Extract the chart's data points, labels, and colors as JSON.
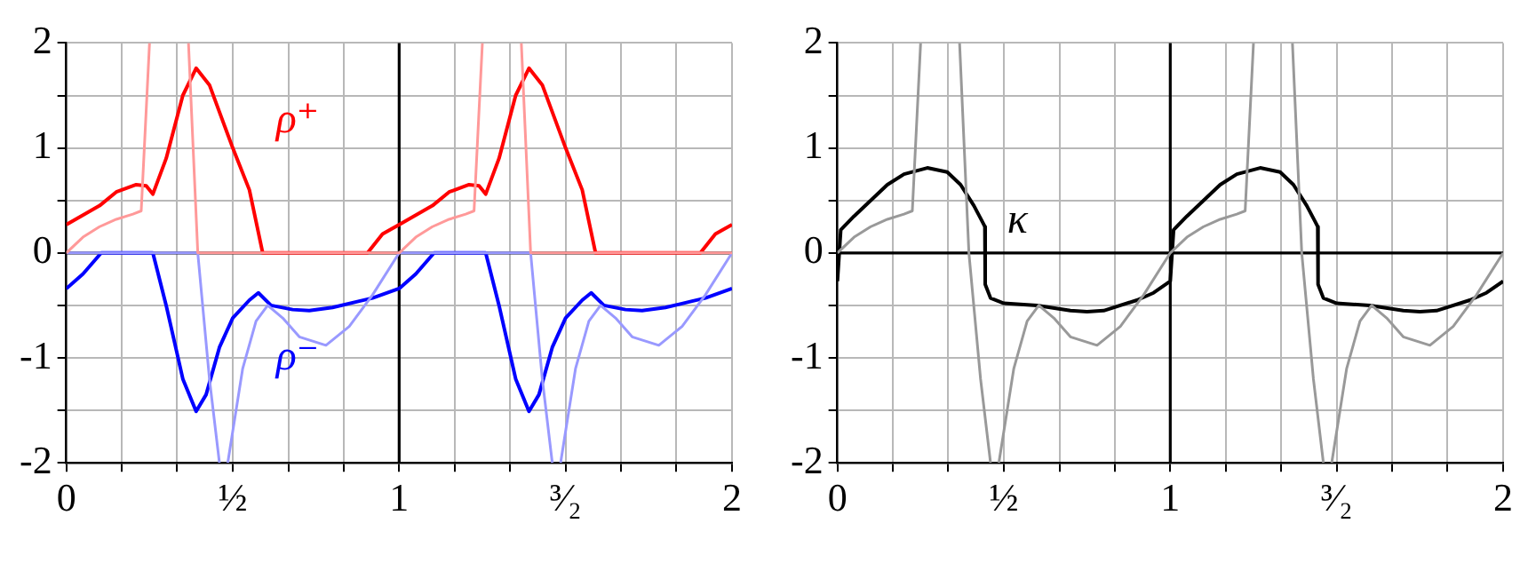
{
  "chart_data": [
    {
      "type": "line",
      "xlim": [
        0,
        2
      ],
      "ylim": [
        -2,
        2
      ],
      "xticks": [
        0,
        {
          "value": 0.167,
          "label": null
        },
        {
          "value": 0.333,
          "label": null
        },
        {
          "value": 0.5,
          "label": "½"
        },
        {
          "value": 0.667,
          "label": null
        },
        {
          "value": 0.833,
          "label": null
        },
        1,
        {
          "value": 1.167,
          "label": null
        },
        {
          "value": 1.333,
          "label": null
        },
        {
          "value": 1.5,
          "label": "³⁄₂"
        },
        {
          "value": 1.667,
          "label": null
        },
        {
          "value": 1.833,
          "label": null
        },
        2
      ],
      "yticks": [
        -2,
        {
          "value": -1.5,
          "label": null
        },
        -1,
        {
          "value": -0.5,
          "label": null
        },
        0,
        {
          "value": 0.5,
          "label": null
        },
        1,
        {
          "value": 1.5,
          "label": null
        },
        2
      ],
      "grid": true,
      "legend": false,
      "ref_lines": [
        {
          "axis": "x",
          "value": 1,
          "color": "#000000"
        },
        {
          "axis": "y",
          "value": 0,
          "color": "#000000"
        }
      ],
      "series": [
        {
          "color": "#ff9999",
          "x": [
            0,
            0.05,
            0.1,
            0.15,
            0.2,
            0.225,
            0.25,
            0.3,
            0.367,
            0.395,
            1.0,
            1.05,
            1.1,
            1.15,
            1.2,
            1.225,
            1.25,
            1.3,
            1.367,
            1.395,
            2.0
          ],
          "values": [
            0,
            0.15,
            0.25,
            0.32,
            0.37,
            0.4,
            2,
            null,
            2,
            0,
            0,
            0.15,
            0.25,
            0.32,
            0.37,
            0.4,
            2,
            null,
            2,
            0,
            0
          ]
        },
        {
          "color": "#9999ff",
          "x": [
            0,
            0.395,
            0.43,
            0.46,
            0.47,
            0.485,
            0.53,
            0.57,
            0.605,
            0.65,
            0.7,
            0.78,
            0.85,
            0.92,
            1.0,
            1.395,
            1.43,
            1.46,
            1.47,
            1.485,
            1.53,
            1.57,
            1.605,
            1.65,
            1.7,
            1.78,
            1.85,
            1.92,
            2.0
          ],
          "values": [
            0,
            0,
            -1.2,
            -2,
            null,
            -2,
            -1.1,
            -0.65,
            -0.5,
            -0.62,
            -0.8,
            -0.88,
            -0.7,
            -0.4,
            0,
            0,
            -1.2,
            -2,
            null,
            -2,
            -1.1,
            -0.65,
            -0.5,
            -0.62,
            -0.8,
            -0.88,
            -0.7,
            -0.4,
            0
          ]
        },
        {
          "name": "ρ⁺",
          "color": "#ff0000",
          "x": [
            0,
            0.05,
            0.1,
            0.15,
            0.21,
            0.24,
            0.26,
            0.3,
            0.35,
            0.39,
            0.43,
            0.5,
            0.55,
            0.59,
            0.905,
            0.95,
            1.0,
            1.05,
            1.1,
            1.15,
            1.21,
            1.24,
            1.26,
            1.3,
            1.35,
            1.39,
            1.43,
            1.5,
            1.55,
            1.59,
            1.905,
            1.95,
            2.0
          ],
          "values": [
            0.27,
            0.36,
            0.45,
            0.58,
            0.65,
            0.64,
            0.56,
            0.9,
            1.5,
            1.76,
            1.6,
            1.0,
            0.6,
            0,
            0,
            0.18,
            0.27,
            0.36,
            0.45,
            0.58,
            0.65,
            0.64,
            0.56,
            0.9,
            1.5,
            1.76,
            1.6,
            1.0,
            0.6,
            0,
            0,
            0.18,
            0.27
          ]
        },
        {
          "name": "ρ⁻",
          "color": "#0000ff",
          "x": [
            0,
            0.05,
            0.105,
            0.26,
            0.3,
            0.35,
            0.39,
            0.42,
            0.46,
            0.5,
            0.55,
            0.577,
            0.615,
            0.68,
            0.73,
            0.8,
            0.88,
            0.92,
            1.0,
            1.05,
            1.105,
            1.26,
            1.3,
            1.35,
            1.39,
            1.42,
            1.46,
            1.5,
            1.55,
            1.577,
            1.615,
            1.68,
            1.73,
            1.8,
            1.88,
            1.92,
            2.0
          ],
          "values": [
            -0.34,
            -0.2,
            0,
            0,
            -0.5,
            -1.2,
            -1.51,
            -1.35,
            -0.9,
            -0.62,
            -0.45,
            -0.38,
            -0.5,
            -0.54,
            -0.55,
            -0.52,
            -0.46,
            -0.43,
            -0.34,
            -0.2,
            0,
            0,
            -0.5,
            -1.2,
            -1.51,
            -1.35,
            -0.9,
            -0.62,
            -0.45,
            -0.38,
            -0.5,
            -0.54,
            -0.55,
            -0.52,
            -0.46,
            -0.43,
            -0.34
          ]
        }
      ]
    },
    {
      "type": "line",
      "xlim": [
        0,
        2
      ],
      "ylim": [
        -2,
        2
      ],
      "xticks": [
        0,
        {
          "value": 0.167,
          "label": null
        },
        {
          "value": 0.333,
          "label": null
        },
        {
          "value": 0.5,
          "label": "½"
        },
        {
          "value": 0.667,
          "label": null
        },
        {
          "value": 0.833,
          "label": null
        },
        1,
        {
          "value": 1.167,
          "label": null
        },
        {
          "value": 1.333,
          "label": null
        },
        {
          "value": 1.5,
          "label": "³⁄₂"
        },
        {
          "value": 1.667,
          "label": null
        },
        {
          "value": 1.833,
          "label": null
        },
        2
      ],
      "yticks": [
        -2,
        {
          "value": -1.5,
          "label": null
        },
        -1,
        {
          "value": -0.5,
          "label": null
        },
        0,
        {
          "value": 0.5,
          "label": null
        },
        1,
        {
          "value": 1.5,
          "label": null
        },
        2
      ],
      "grid": true,
      "legend": false,
      "ref_lines": [
        {
          "axis": "x",
          "value": 1,
          "color": "#000000"
        },
        {
          "axis": "y",
          "value": 0,
          "color": "#000000"
        }
      ],
      "series": [
        {
          "color": "#999999",
          "x": [
            0,
            0.05,
            0.1,
            0.15,
            0.2,
            0.225,
            0.25,
            0.3,
            0.367,
            0.395,
            0.43,
            0.46,
            0.47,
            0.485,
            0.53,
            0.57,
            0.605,
            0.65,
            0.7,
            0.78,
            0.85,
            0.92,
            1.0,
            1.05,
            1.1,
            1.15,
            1.2,
            1.225,
            1.25,
            1.3,
            1.367,
            1.395,
            1.43,
            1.46,
            1.47,
            1.485,
            1.53,
            1.57,
            1.605,
            1.65,
            1.7,
            1.78,
            1.85,
            1.92,
            2.0
          ],
          "values": [
            0,
            0.15,
            0.25,
            0.32,
            0.37,
            0.4,
            2,
            null,
            2,
            0,
            -1.2,
            -2,
            null,
            -2,
            -1.1,
            -0.65,
            -0.5,
            -0.62,
            -0.8,
            -0.88,
            -0.7,
            -0.4,
            0,
            0.15,
            0.25,
            0.32,
            0.37,
            0.4,
            2,
            null,
            2,
            0,
            -1.2,
            -2,
            null,
            -2,
            -1.1,
            -0.65,
            -0.5,
            -0.62,
            -0.8,
            -0.88,
            -0.7,
            -0.4,
            0
          ]
        },
        {
          "name": "κ",
          "color": "#000000",
          "x": [
            0,
            0.01,
            0.05,
            0.1,
            0.15,
            0.2,
            0.27,
            0.33,
            0.37,
            0.41,
            0.435,
            0.443,
            0.444,
            0.46,
            0.5,
            0.6,
            0.7,
            0.75,
            0.8,
            0.9,
            0.95,
            1.0,
            1.01,
            1.05,
            1.1,
            1.15,
            1.2,
            1.27,
            1.33,
            1.37,
            1.41,
            1.435,
            1.443,
            1.444,
            1.46,
            1.5,
            1.6,
            1.7,
            1.75,
            1.8,
            1.9,
            1.95,
            2.0
          ],
          "values": [
            -0.27,
            0.22,
            0.35,
            0.5,
            0.65,
            0.75,
            0.81,
            0.77,
            0.65,
            0.45,
            0.3,
            0.25,
            -0.3,
            -0.43,
            -0.48,
            -0.5,
            -0.55,
            -0.56,
            -0.55,
            -0.45,
            -0.38,
            -0.27,
            0.22,
            0.35,
            0.5,
            0.65,
            0.75,
            0.81,
            0.77,
            0.65,
            0.45,
            0.3,
            0.25,
            -0.3,
            -0.43,
            -0.48,
            -0.5,
            -0.55,
            -0.56,
            -0.55,
            -0.45,
            -0.38,
            -0.27
          ]
        }
      ]
    }
  ]
}
